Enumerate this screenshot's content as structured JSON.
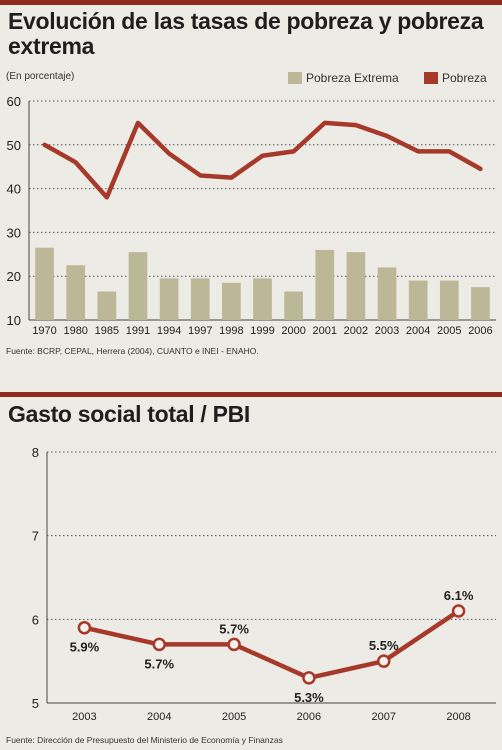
{
  "chart_data": [
    {
      "type": "bar",
      "title": "Evolución de las tasas de pobreza y pobreza extrema",
      "subtitle": "(En porcentaje)",
      "categories": [
        "1970",
        "1980",
        "1985",
        "1991",
        "1994",
        "1997",
        "1998",
        "1999",
        "2000",
        "2001",
        "2002",
        "2003",
        "2004",
        "2005",
        "2006"
      ],
      "series": [
        {
          "name": "Pobreza Extrema",
          "type": "bar",
          "color": "#bcb796",
          "values": [
            26.5,
            22.5,
            16.5,
            25.5,
            19.5,
            19.5,
            18.5,
            19.5,
            16.5,
            26,
            25.5,
            22,
            19,
            19,
            17.5
          ]
        },
        {
          "name": "Pobreza",
          "type": "line",
          "color": "#a6392a",
          "values": [
            50,
            46,
            38,
            55,
            48,
            43,
            42.5,
            47.5,
            48.5,
            55,
            54.5,
            52,
            48.5,
            48.5,
            44.5
          ]
        }
      ],
      "ylim": [
        10,
        60
      ],
      "yticks": [
        10,
        20,
        30,
        40,
        50,
        60
      ],
      "grid": true,
      "legend": "top-right",
      "source": "Fuente: BCRP, CEPAL, Herrera (2004), CUANTO e INEI - ENAHO."
    },
    {
      "type": "line",
      "title": "Gasto social total / PBI",
      "categories": [
        "2003",
        "2004",
        "2005",
        "2006",
        "2007",
        "2008"
      ],
      "values": [
        5.9,
        5.7,
        5.7,
        5.3,
        5.5,
        6.1
      ],
      "data_labels": [
        "5.9%",
        "5.7%",
        "5.7%",
        "5.3%",
        "5.5%",
        "6.1%"
      ],
      "ylim": [
        5,
        8
      ],
      "yticks": [
        5,
        6,
        7,
        8
      ],
      "grid": true,
      "color": "#a6392a",
      "source": "Fuente: Dirección de Presupuesto del Ministerio de Economía y Finanzas"
    }
  ]
}
